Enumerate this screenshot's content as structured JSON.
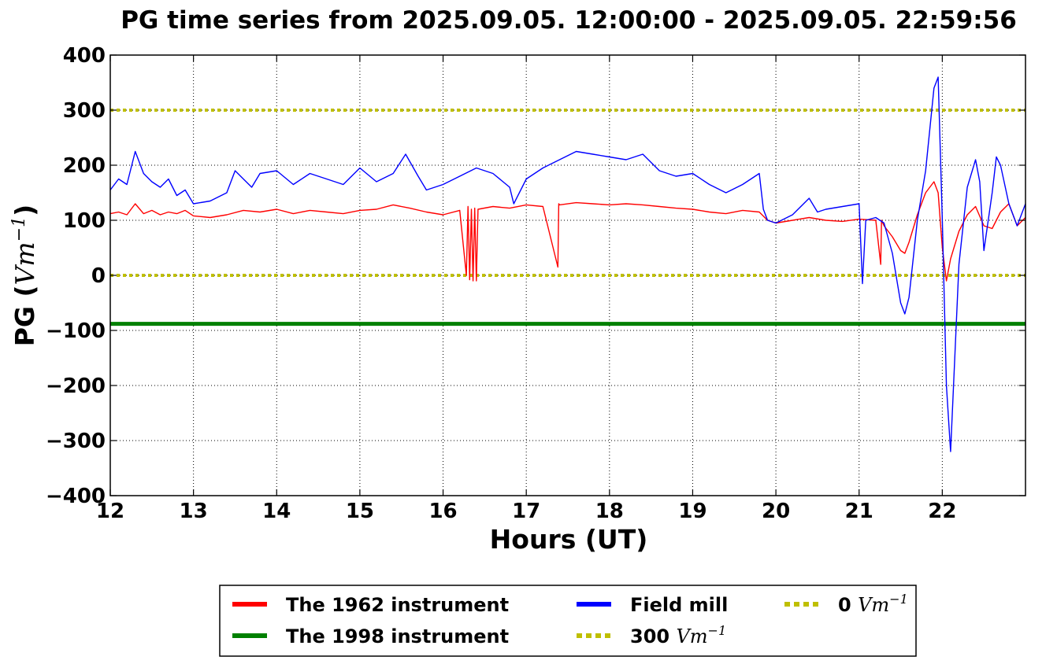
{
  "chart_data": {
    "type": "line",
    "title": "PG time series from 2025.09.05. 12:00:00 - 2025.09.05. 22:59:56",
    "xlabel": "Hours (UT)",
    "ylabel_prefix": "PG (",
    "ylabel_unit": "Vm",
    "ylabel_exp": "−1",
    "ylabel_suffix": ")",
    "xlim": [
      12,
      23
    ],
    "ylim": [
      -400,
      400
    ],
    "x_ticks": [
      12,
      13,
      14,
      15,
      16,
      17,
      18,
      19,
      20,
      21,
      22
    ],
    "x_tick_labels": [
      "12",
      "13",
      "14",
      "15",
      "16",
      "17",
      "18",
      "19",
      "20",
      "21",
      "22"
    ],
    "y_ticks": [
      -400,
      -300,
      -200,
      -100,
      0,
      100,
      200,
      300,
      400
    ],
    "y_tick_labels": [
      "−400",
      "−300",
      "−200",
      "−100",
      "0",
      "100",
      "200",
      "300",
      "400"
    ],
    "grid": true,
    "legend_placement": "bottom, below axes, 3 columns",
    "series": [
      {
        "name": "The 1962 instrument",
        "color": "#ff0000",
        "style": "solid",
        "x": [
          12.0,
          12.1,
          12.2,
          12.3,
          12.4,
          12.5,
          12.6,
          12.7,
          12.8,
          12.9,
          13.0,
          13.2,
          13.4,
          13.6,
          13.8,
          14.0,
          14.2,
          14.4,
          14.6,
          14.8,
          15.0,
          15.2,
          15.4,
          15.6,
          15.8,
          16.0,
          16.2,
          16.28,
          16.3,
          16.32,
          16.34,
          16.36,
          16.38,
          16.4,
          16.42,
          16.6,
          16.8,
          17.0,
          17.2,
          17.38,
          17.39,
          17.4,
          17.6,
          17.8,
          18.0,
          18.2,
          18.4,
          18.6,
          18.8,
          19.0,
          19.2,
          19.4,
          19.6,
          19.8,
          19.9,
          20.0,
          20.2,
          20.4,
          20.6,
          20.8,
          21.0,
          21.2,
          21.26,
          21.27,
          21.3,
          21.4,
          21.5,
          21.55,
          21.6,
          21.7,
          21.8,
          21.9,
          21.95,
          22.0,
          22.05,
          22.1,
          22.2,
          22.3,
          22.4,
          22.5,
          22.6,
          22.7,
          22.8,
          22.9,
          23.0
        ],
        "y": [
          112,
          115,
          110,
          130,
          112,
          118,
          110,
          115,
          112,
          118,
          108,
          105,
          110,
          118,
          115,
          120,
          112,
          118,
          115,
          112,
          118,
          120,
          128,
          122,
          115,
          110,
          118,
          0,
          125,
          -8,
          120,
          -10,
          122,
          -10,
          120,
          125,
          122,
          128,
          125,
          15,
          130,
          128,
          132,
          130,
          128,
          130,
          128,
          125,
          122,
          120,
          115,
          112,
          118,
          115,
          100,
          95,
          100,
          105,
          100,
          98,
          102,
          100,
          20,
          100,
          90,
          70,
          45,
          40,
          60,
          110,
          150,
          170,
          150,
          50,
          -10,
          30,
          80,
          110,
          125,
          90,
          85,
          115,
          130,
          90,
          105
        ]
      },
      {
        "name": "The 1998 instrument",
        "color": "#008000",
        "style": "solid",
        "x": [
          12,
          23
        ],
        "y": [
          -88,
          -88
        ]
      },
      {
        "name": "Field mill",
        "color": "#0000ff",
        "style": "solid",
        "x": [
          12.0,
          12.1,
          12.2,
          12.3,
          12.4,
          12.5,
          12.6,
          12.7,
          12.8,
          12.9,
          13.0,
          13.2,
          13.4,
          13.5,
          13.6,
          13.7,
          13.8,
          14.0,
          14.2,
          14.4,
          14.6,
          14.8,
          15.0,
          15.2,
          15.4,
          15.55,
          15.7,
          15.8,
          16.0,
          16.2,
          16.4,
          16.6,
          16.8,
          16.85,
          17.0,
          17.2,
          17.4,
          17.6,
          17.8,
          18.0,
          18.2,
          18.4,
          18.6,
          18.8,
          19.0,
          19.2,
          19.4,
          19.6,
          19.8,
          19.85,
          19.9,
          20.0,
          20.2,
          20.4,
          20.5,
          20.6,
          20.8,
          21.0,
          21.04,
          21.08,
          21.2,
          21.3,
          21.4,
          21.5,
          21.55,
          21.6,
          21.7,
          21.8,
          21.9,
          21.95,
          22.0,
          22.05,
          22.1,
          22.15,
          22.2,
          22.3,
          22.4,
          22.45,
          22.5,
          22.6,
          22.65,
          22.7,
          22.8,
          22.9,
          23.0
        ],
        "y": [
          155,
          175,
          165,
          225,
          185,
          170,
          160,
          175,
          145,
          155,
          130,
          135,
          150,
          190,
          175,
          160,
          185,
          190,
          165,
          185,
          175,
          165,
          195,
          170,
          185,
          220,
          180,
          155,
          165,
          180,
          195,
          185,
          160,
          130,
          175,
          195,
          210,
          225,
          220,
          215,
          210,
          220,
          190,
          180,
          185,
          165,
          150,
          165,
          185,
          120,
          100,
          95,
          110,
          140,
          115,
          120,
          125,
          130,
          -15,
          100,
          105,
          95,
          40,
          -50,
          -70,
          -40,
          100,
          190,
          340,
          360,
          100,
          -200,
          -320,
          -150,
          20,
          160,
          210,
          170,
          45,
          150,
          215,
          200,
          130,
          90,
          130
        ]
      },
      {
        "name": "300 Vm⁻¹",
        "legend_value": "300",
        "color": "#bfbf00",
        "style": "dotted",
        "x": [
          12,
          23
        ],
        "y": [
          300,
          300
        ]
      },
      {
        "name": "0 Vm⁻¹",
        "legend_value": "0",
        "color": "#bfbf00",
        "style": "dotted",
        "x": [
          12,
          23
        ],
        "y": [
          0,
          0
        ]
      }
    ],
    "legend_unit": "Vm",
    "legend_unit_exp": "−1"
  }
}
